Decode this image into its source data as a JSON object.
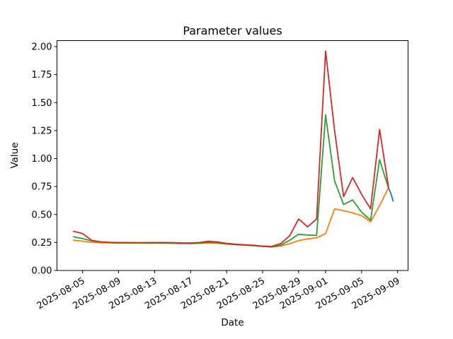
{
  "figure": {
    "title": "Parameter values",
    "xlabel": "Date",
    "ylabel": "Value"
  },
  "chart_data": {
    "type": "line",
    "title": "Parameter values",
    "xlabel": "Date",
    "ylabel": "Value",
    "grid": false,
    "legend": "none",
    "ylim": [
      0.0,
      2.053
    ],
    "y_ticks": [
      0.0,
      0.25,
      0.5,
      0.75,
      1.0,
      1.25,
      1.5,
      1.75,
      2.0
    ],
    "y_tick_labels": [
      "0.00",
      "0.25",
      "0.50",
      "0.75",
      "1.00",
      "1.25",
      "1.50",
      "1.75",
      "2.00"
    ],
    "x_origin_date": "2025-08-04",
    "x_tick_labels": [
      "2025-08-05",
      "2025-08-09",
      "2025-08-13",
      "2025-08-17",
      "2025-08-21",
      "2025-08-25",
      "2025-08-29",
      "2025-09-01",
      "2025-09-05",
      "2025-09-09"
    ],
    "x_tick_day_offsets": [
      1,
      5,
      9,
      13,
      17,
      21,
      25,
      28,
      32,
      36
    ],
    "x_tick_rotation_deg": 30,
    "dates": [
      "2025-08-04",
      "2025-08-05",
      "2025-08-06",
      "2025-08-07",
      "2025-08-08",
      "2025-08-09",
      "2025-08-10",
      "2025-08-11",
      "2025-08-12",
      "2025-08-13",
      "2025-08-14",
      "2025-08-15",
      "2025-08-16",
      "2025-08-17",
      "2025-08-18",
      "2025-08-19",
      "2025-08-20",
      "2025-08-21",
      "2025-08-22",
      "2025-08-23",
      "2025-08-24",
      "2025-08-25",
      "2025-08-26",
      "2025-08-27",
      "2025-08-28",
      "2025-08-29",
      "2025-08-30",
      "2025-08-31",
      "2025-09-01",
      "2025-09-02",
      "2025-09-03",
      "2025-09-04",
      "2025-09-05",
      "2025-09-06",
      "2025-09-07",
      "2025-09-08"
    ],
    "series": [
      {
        "name": "blue",
        "color": "#1f77b4",
        "x_day_offsets": [
          35,
          35.25,
          35.5
        ],
        "values": [
          0.735,
          0.69,
          0.62
        ]
      },
      {
        "name": "orange",
        "color": "#ff7f0e",
        "values": [
          0.27,
          0.262,
          0.252,
          0.248,
          0.246,
          0.245,
          0.244,
          0.244,
          0.243,
          0.243,
          0.243,
          0.242,
          0.24,
          0.24,
          0.242,
          0.246,
          0.243,
          0.236,
          0.23,
          0.226,
          0.222,
          0.216,
          0.21,
          0.218,
          0.24,
          0.267,
          0.282,
          0.292,
          0.33,
          0.55,
          0.535,
          0.515,
          0.49,
          0.435,
          0.58,
          0.74
        ]
      },
      {
        "name": "green",
        "color": "#2ca02c",
        "values": [
          0.3,
          0.285,
          0.265,
          0.255,
          0.25,
          0.248,
          0.247,
          0.247,
          0.246,
          0.246,
          0.246,
          0.245,
          0.243,
          0.242,
          0.245,
          0.253,
          0.248,
          0.238,
          0.232,
          0.227,
          0.222,
          0.215,
          0.21,
          0.225,
          0.27,
          0.324,
          0.317,
          0.313,
          1.39,
          0.8,
          0.59,
          0.63,
          0.52,
          0.45,
          0.99,
          0.735
        ]
      },
      {
        "name": "red",
        "color": "#d62728",
        "values": [
          0.35,
          0.33,
          0.27,
          0.256,
          0.252,
          0.25,
          0.25,
          0.249,
          0.249,
          0.25,
          0.25,
          0.249,
          0.247,
          0.246,
          0.25,
          0.262,
          0.254,
          0.242,
          0.235,
          0.23,
          0.225,
          0.218,
          0.215,
          0.24,
          0.31,
          0.46,
          0.39,
          0.46,
          1.96,
          1.25,
          0.66,
          0.83,
          0.68,
          0.55,
          1.26,
          0.74
        ]
      }
    ]
  }
}
